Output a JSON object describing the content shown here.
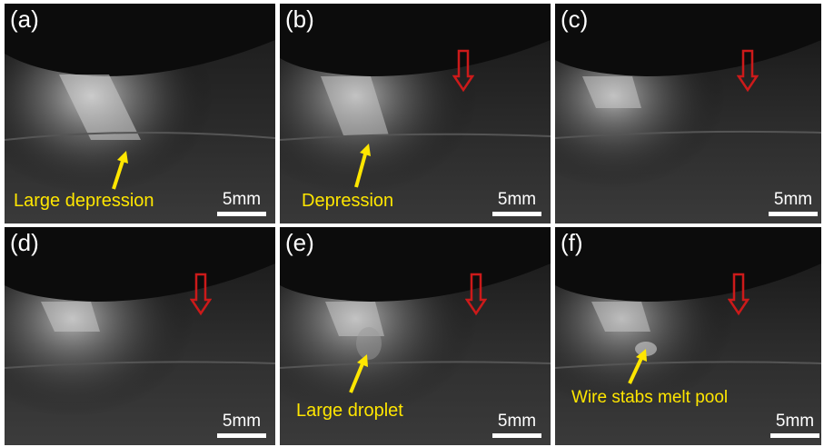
{
  "figure": {
    "panels": [
      {
        "id": "a",
        "label": "(a)",
        "scale_label": "5mm",
        "annotation": "Large depression",
        "has_red_arrow": false
      },
      {
        "id": "b",
        "label": "(b)",
        "scale_label": "5mm",
        "annotation": "Depression",
        "has_red_arrow": true
      },
      {
        "id": "c",
        "label": "(c)",
        "scale_label": "5mm",
        "annotation": "",
        "has_red_arrow": true
      },
      {
        "id": "d",
        "label": "(d)",
        "scale_label": "5mm",
        "annotation": "",
        "has_red_arrow": true
      },
      {
        "id": "e",
        "label": "(e)",
        "scale_label": "5mm",
        "annotation": "Large droplet",
        "has_red_arrow": true
      },
      {
        "id": "f",
        "label": "(f)",
        "scale_label": "5mm",
        "annotation": "Wire stabs melt pool",
        "has_red_arrow": true
      }
    ],
    "colors": {
      "annotation": "#ffe600",
      "red_arrow": "#cc1a1a",
      "scale_bar": "#ffffff"
    }
  }
}
